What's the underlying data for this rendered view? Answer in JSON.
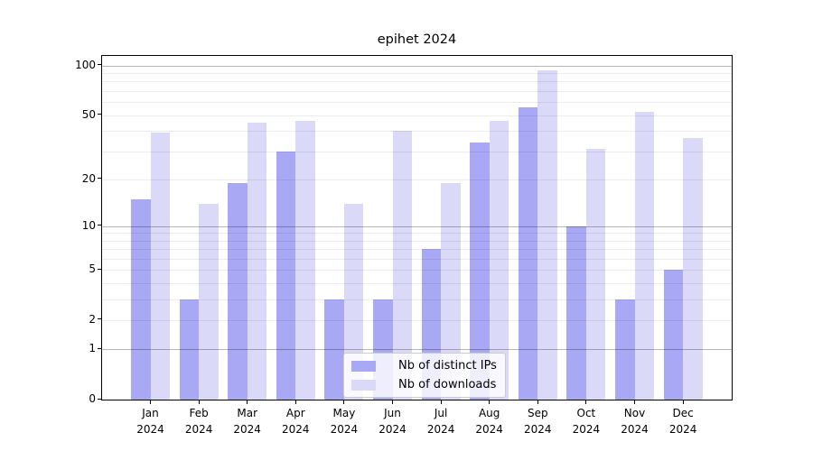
{
  "figure": {
    "title": "epihet 2024",
    "background": "#ffffff"
  },
  "chart_data": {
    "type": "bar",
    "title": "epihet 2024",
    "yscale": "log(1+x)",
    "grid": "on",
    "legend_position": "lower center",
    "months": [
      "Jan",
      "Feb",
      "Mar",
      "Apr",
      "May",
      "Jun",
      "Jul",
      "Aug",
      "Sep",
      "Oct",
      "Nov",
      "Dec"
    ],
    "year": "2024",
    "categories": [
      "Jan 2024",
      "Feb 2024",
      "Mar 2024",
      "Apr 2024",
      "May 2024",
      "Jun 2024",
      "Jul 2024",
      "Aug 2024",
      "Sep 2024",
      "Oct 2024",
      "Nov 2024",
      "Dec 2024"
    ],
    "series": [
      {
        "name": "Nb of distinct IPs",
        "color": "#a8a8f5",
        "values": [
          15,
          3,
          19,
          30,
          3,
          3,
          7,
          34,
          56,
          10,
          3,
          5
        ]
      },
      {
        "name": "Nb of downloads",
        "color": "#dadaf8",
        "values": [
          39,
          14,
          45,
          46,
          14,
          40,
          19,
          46,
          94,
          31,
          52,
          36
        ]
      }
    ],
    "y_tick_labels": [
      "0",
      "1",
      "2",
      "5",
      "10",
      "20",
      "50",
      "100"
    ],
    "y_ticks": [
      0,
      1,
      2,
      5,
      10,
      20,
      50,
      100
    ],
    "minor_gridlines": [
      2,
      3,
      4,
      5,
      6,
      7,
      8,
      9,
      20,
      30,
      40,
      50,
      60,
      70,
      80,
      90
    ],
    "major_gridlines": [
      1,
      10,
      100
    ],
    "ylim": [
      0,
      110
    ]
  }
}
